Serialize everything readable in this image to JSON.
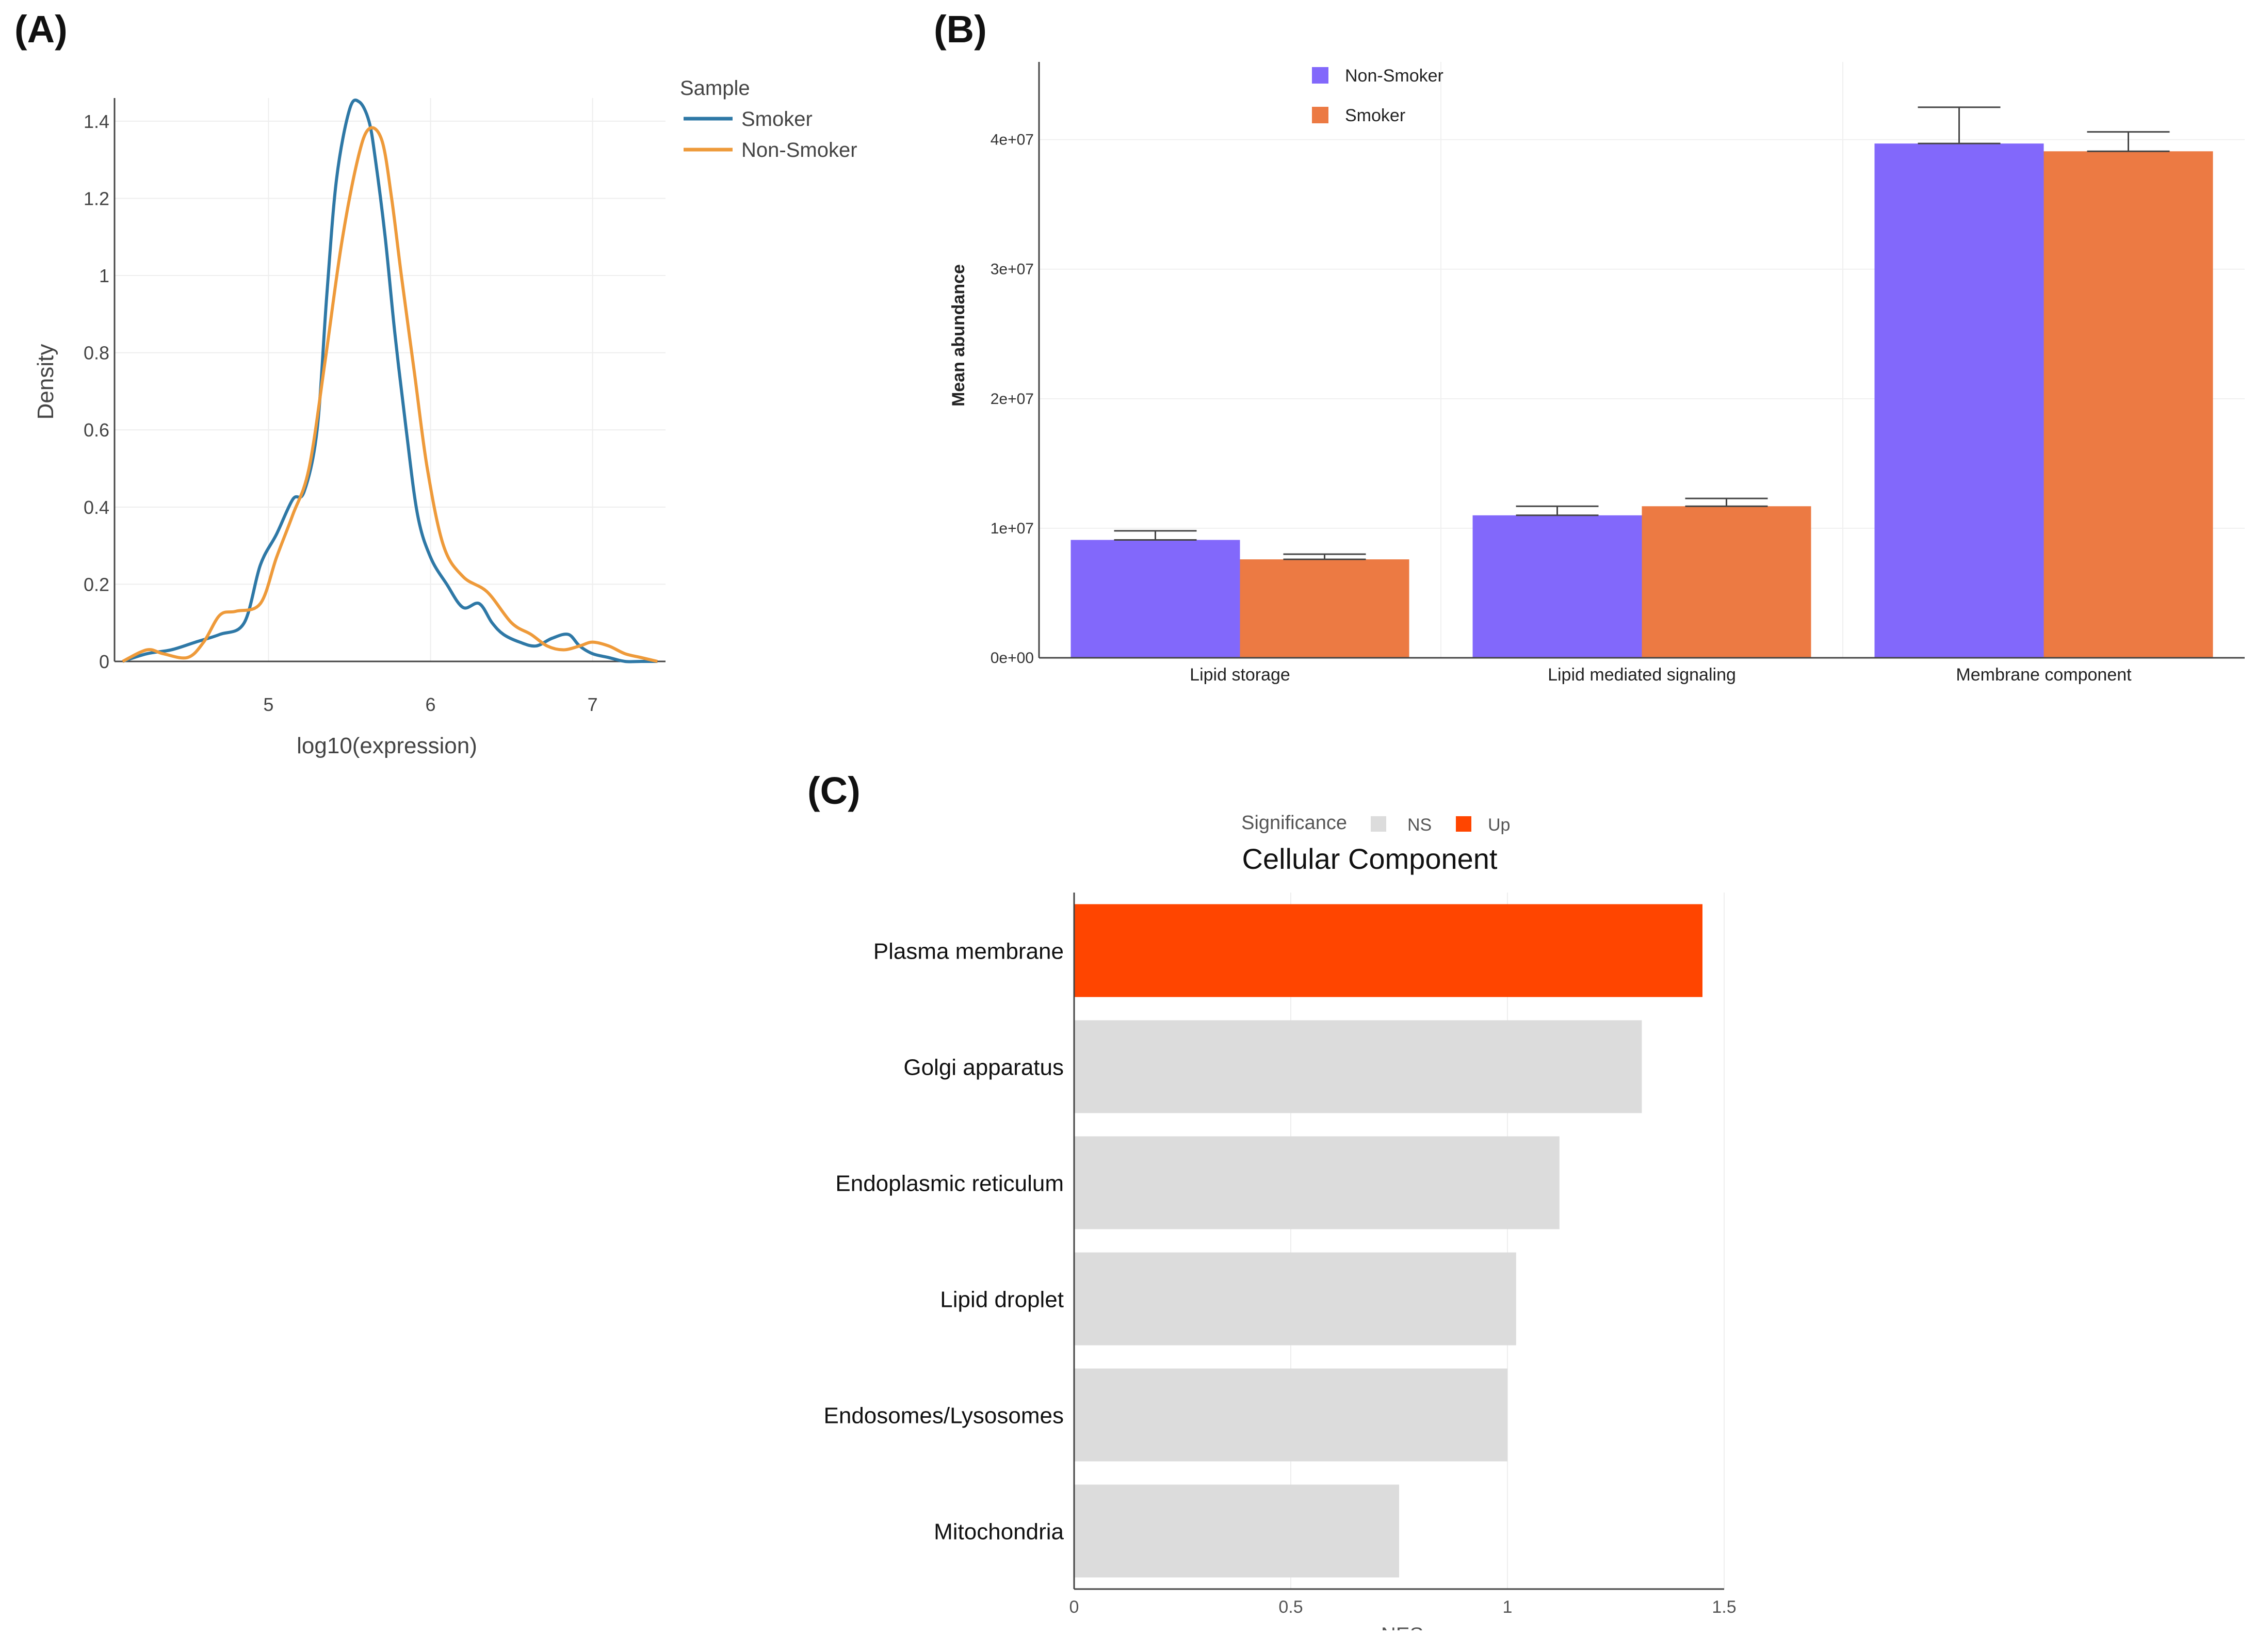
{
  "panels": {
    "a": "(A)",
    "b": "(B)",
    "c": "(C)"
  },
  "colors": {
    "smoker_line": "#2e78a6",
    "nonsmoker_line": "#ee9a3a",
    "nonsmoker_bar": "#8268fb",
    "smoker_bar": "#ec7a43",
    "up": "#ff4500",
    "ns": "#dcdcdc"
  },
  "chart_data": [
    {
      "id": "A",
      "type": "line",
      "title": "",
      "xlabel": "log10(expression)",
      "ylabel": "Density",
      "xlim": [
        4.05,
        7.45
      ],
      "ylim": [
        0,
        1.46
      ],
      "x_ticks": [
        5,
        6,
        7
      ],
      "y_ticks": [
        0,
        0.2,
        0.4,
        0.6,
        0.8,
        1,
        1.2,
        1.4
      ],
      "y_tick_labels": [
        "0",
        "0.2",
        "0.4",
        "0.6",
        "0.8",
        "1",
        "1.2",
        "1.4"
      ],
      "legend_title": "Sample",
      "legend_position": "top-right, outside plot",
      "series": [
        {
          "name": "Smoker",
          "x": [
            4.1,
            4.25,
            4.4,
            4.55,
            4.7,
            4.85,
            4.95,
            5.05,
            5.15,
            5.22,
            5.3,
            5.36,
            5.42,
            5.5,
            5.56,
            5.62,
            5.66,
            5.72,
            5.78,
            5.85,
            5.92,
            6.0,
            6.1,
            6.2,
            6.3,
            6.38,
            6.45,
            6.55,
            6.65,
            6.75,
            6.85,
            6.92,
            7.0,
            7.1,
            7.2,
            7.3,
            7.4
          ],
          "values": [
            0.0,
            0.02,
            0.03,
            0.05,
            0.07,
            0.1,
            0.25,
            0.33,
            0.42,
            0.44,
            0.6,
            0.95,
            1.25,
            1.43,
            1.45,
            1.4,
            1.3,
            1.1,
            0.85,
            0.6,
            0.38,
            0.27,
            0.2,
            0.14,
            0.15,
            0.1,
            0.07,
            0.05,
            0.04,
            0.06,
            0.07,
            0.04,
            0.02,
            0.01,
            0.0,
            0.0,
            0.0
          ]
        },
        {
          "name": "Non-Smoker",
          "x": [
            4.1,
            4.25,
            4.35,
            4.5,
            4.6,
            4.7,
            4.8,
            4.95,
            5.05,
            5.15,
            5.25,
            5.35,
            5.45,
            5.55,
            5.62,
            5.7,
            5.76,
            5.82,
            5.9,
            5.98,
            6.08,
            6.2,
            6.35,
            6.5,
            6.62,
            6.72,
            6.82,
            6.92,
            7.0,
            7.1,
            7.2,
            7.3,
            7.4
          ],
          "values": [
            0.0,
            0.03,
            0.02,
            0.01,
            0.05,
            0.12,
            0.13,
            0.15,
            0.27,
            0.38,
            0.5,
            0.78,
            1.08,
            1.3,
            1.38,
            1.35,
            1.2,
            1.0,
            0.75,
            0.5,
            0.3,
            0.22,
            0.18,
            0.1,
            0.07,
            0.04,
            0.03,
            0.04,
            0.05,
            0.04,
            0.02,
            0.01,
            0.0
          ]
        }
      ]
    },
    {
      "id": "B",
      "type": "bar",
      "title": "",
      "xlabel": "",
      "ylabel": "Mean abundance",
      "ylim": [
        0,
        46000000
      ],
      "y_ticks": [
        0,
        10000000,
        20000000,
        30000000,
        40000000
      ],
      "y_tick_labels": [
        "0e+00",
        "1e+07",
        "2e+07",
        "3e+07",
        "4e+07"
      ],
      "categories": [
        "Lipid storage",
        "Lipid mediated signaling",
        "Membrane component"
      ],
      "legend_position": "top-left",
      "series": [
        {
          "name": "Non-Smoker",
          "values": [
            9100000,
            11000000,
            39700000
          ],
          "error": [
            700000,
            700000,
            2800000
          ]
        },
        {
          "name": "Smoker",
          "values": [
            7600000,
            11700000,
            39100000
          ],
          "error": [
            400000,
            600000,
            1500000
          ]
        }
      ]
    },
    {
      "id": "C",
      "type": "bar",
      "orientation": "horizontal",
      "title": "Cellular Component",
      "xlabel": "NES",
      "ylabel": "",
      "xlim": [
        0,
        1.5
      ],
      "x_ticks": [
        0,
        0.5,
        1,
        1.5
      ],
      "x_tick_labels": [
        "0",
        "0.5",
        "1",
        "1.5"
      ],
      "categories": [
        "Plasma membrane",
        "Golgi apparatus",
        "Endoplasmic reticulum",
        "Lipid droplet",
        "Endosomes/Lysosomes",
        "Mitochondria"
      ],
      "values": [
        1.45,
        1.31,
        1.12,
        1.02,
        1.0,
        0.75
      ],
      "significance": [
        "Up",
        "NS",
        "NS",
        "NS",
        "NS",
        "NS"
      ],
      "legend_title": "Significance",
      "legend_entries": [
        "NS",
        "Up"
      ],
      "legend_position": "top"
    }
  ]
}
